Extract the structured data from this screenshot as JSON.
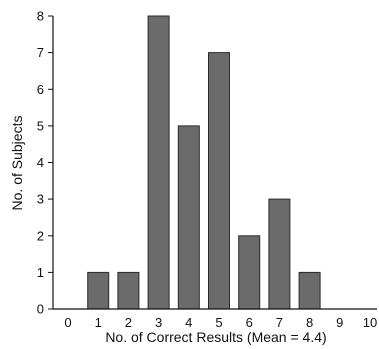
{
  "chart_data": {
    "type": "bar",
    "xlabel": "No. of Correct Results (Mean = 4.4)",
    "ylabel": "No. of Subjects",
    "categories": [
      "0",
      "1",
      "2",
      "3",
      "4",
      "5",
      "6",
      "7",
      "8",
      "9",
      "10"
    ],
    "values": [
      0,
      1,
      1,
      8,
      5,
      7,
      2,
      3,
      1,
      0,
      0
    ],
    "y_ticks": [
      "0",
      "1",
      "2",
      "3",
      "4",
      "5",
      "6",
      "7",
      "8"
    ],
    "ylim": [
      0,
      8
    ],
    "grid": false,
    "bar_color": "#6b6b6b"
  }
}
